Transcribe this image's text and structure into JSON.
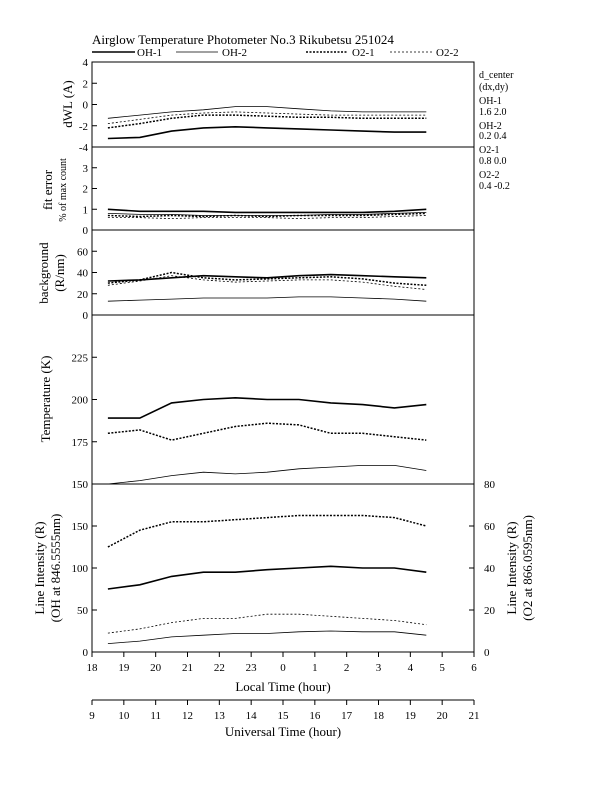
{
  "header": {
    "title": "Airglow Temperature Photometer No.3  Rikubetsu    251024",
    "legend": [
      {
        "name": "OH-1",
        "style": "solid-thick"
      },
      {
        "name": "OH-2",
        "style": "solid-thin"
      },
      {
        "name": "O2-1",
        "style": "dotted-thick"
      },
      {
        "name": "O2-2",
        "style": "dotted-thin"
      }
    ]
  },
  "annotations": {
    "d_center_title": "d_center",
    "d_center_sub": "(dx,dy)",
    "oh1_label": "OH-1",
    "oh1_value": "1.6  2.0",
    "oh2_label": "OH-2",
    "oh2_value": "0.2  0.4",
    "o21_label": "O2-1",
    "o21_value": "0.8  0.0",
    "o22_label": "O2-2",
    "o22_value": "0.4  -0.2"
  },
  "axes": {
    "local_time_label": "Local Time (hour)",
    "universal_time_label": "Universal Time (hour)",
    "local_ticks": [
      "18",
      "19",
      "20",
      "21",
      "22",
      "23",
      "0",
      "1",
      "2",
      "3",
      "4",
      "5",
      "6"
    ],
    "ut_ticks": [
      "9",
      "10",
      "11",
      "12",
      "13",
      "14",
      "15",
      "16",
      "17",
      "18",
      "19",
      "20",
      "21"
    ]
  },
  "colors": {
    "line": "#000000",
    "background": "#ffffff"
  },
  "chart_data": [
    {
      "type": "line",
      "panel": "dwl",
      "ylabel": "dWL (A)",
      "ylim": [
        -4,
        4
      ],
      "yticks": [
        "4",
        "2",
        "0",
        "-2",
        "-4"
      ],
      "series": [
        {
          "name": "OH-1",
          "x": [
            18.5,
            19.5,
            20.5,
            21.5,
            22.5,
            23.5,
            24.5,
            25.5,
            26.5,
            27.5,
            28.5
          ],
          "values": [
            -3.2,
            -3.1,
            -2.5,
            -2.2,
            -2.1,
            -2.2,
            -2.3,
            -2.4,
            -2.5,
            -2.6,
            -2.6
          ]
        },
        {
          "name": "OH-2",
          "x": [
            18.5,
            19.5,
            20.5,
            21.5,
            22.5,
            23.5,
            24.5,
            25.5,
            26.5,
            27.5,
            28.5
          ],
          "values": [
            -1.3,
            -1.0,
            -0.7,
            -0.5,
            -0.2,
            -0.2,
            -0.4,
            -0.6,
            -0.7,
            -0.7,
            -0.7
          ]
        },
        {
          "name": "O2-1",
          "x": [
            18.5,
            19.5,
            20.5,
            21.5,
            22.5,
            23.5,
            24.5,
            25.5,
            26.5,
            27.5,
            28.5
          ],
          "values": [
            -2.2,
            -1.8,
            -1.3,
            -1.0,
            -1.0,
            -1.1,
            -1.2,
            -1.2,
            -1.3,
            -1.3,
            -1.3
          ]
        },
        {
          "name": "O2-2",
          "x": [
            18.5,
            19.5,
            20.5,
            21.5,
            22.5,
            23.5,
            24.5,
            25.5,
            26.5,
            27.5,
            28.5
          ],
          "values": [
            -1.8,
            -1.4,
            -1.0,
            -0.8,
            -0.7,
            -0.8,
            -0.9,
            -1.0,
            -1.0,
            -1.0,
            -1.0
          ]
        }
      ]
    },
    {
      "type": "line",
      "panel": "fit-error",
      "ylabel": "fit error",
      "ylabel2": "% of max count",
      "ylim": [
        0,
        4
      ],
      "yticks": [
        "3",
        "2",
        "1",
        "0"
      ],
      "series": [
        {
          "name": "OH-1",
          "x": [
            18.5,
            19.5,
            20.5,
            21.5,
            22.5,
            23.5,
            24.5,
            25.5,
            26.5,
            27.5,
            28.5
          ],
          "values": [
            1.0,
            0.9,
            0.9,
            0.9,
            0.85,
            0.85,
            0.85,
            0.85,
            0.85,
            0.9,
            1.0
          ]
        },
        {
          "name": "OH-2",
          "x": [
            18.5,
            19.5,
            20.5,
            21.5,
            22.5,
            23.5,
            24.5,
            25.5,
            26.5,
            27.5,
            28.5
          ],
          "values": [
            0.8,
            0.75,
            0.75,
            0.7,
            0.7,
            0.7,
            0.7,
            0.75,
            0.75,
            0.8,
            0.85
          ]
        },
        {
          "name": "O2-1",
          "x": [
            18.5,
            19.5,
            20.5,
            21.5,
            22.5,
            23.5,
            24.5,
            25.5,
            26.5,
            27.5,
            28.5
          ],
          "values": [
            0.7,
            0.65,
            0.7,
            0.65,
            0.7,
            0.65,
            0.7,
            0.7,
            0.7,
            0.75,
            0.8
          ]
        },
        {
          "name": "O2-2",
          "x": [
            18.5,
            19.5,
            20.5,
            21.5,
            22.5,
            23.5,
            24.5,
            25.5,
            26.5,
            27.5,
            28.5
          ],
          "values": [
            0.6,
            0.6,
            0.55,
            0.6,
            0.6,
            0.6,
            0.55,
            0.6,
            0.6,
            0.65,
            0.7
          ]
        }
      ]
    },
    {
      "type": "line",
      "panel": "background",
      "ylabel": "background",
      "ylabel2": "(R/nm)",
      "ylim": [
        0,
        80
      ],
      "yticks": [
        "60",
        "40",
        "20",
        "0"
      ],
      "series": [
        {
          "name": "OH-1",
          "x": [
            18.5,
            19.5,
            20.5,
            21.5,
            22.5,
            23.5,
            24.5,
            25.5,
            26.5,
            27.5,
            28.5
          ],
          "values": [
            32,
            33,
            35,
            37,
            36,
            35,
            37,
            38,
            37,
            36,
            35
          ]
        },
        {
          "name": "OH-2",
          "x": [
            18.5,
            19.5,
            20.5,
            21.5,
            22.5,
            23.5,
            24.5,
            25.5,
            26.5,
            27.5,
            28.5
          ],
          "values": [
            13,
            14,
            15,
            16,
            16,
            16,
            17,
            17,
            16,
            15,
            13
          ]
        },
        {
          "name": "O2-1",
          "x": [
            18.5,
            19.5,
            20.5,
            21.5,
            22.5,
            23.5,
            24.5,
            25.5,
            26.5,
            27.5,
            28.5
          ],
          "values": [
            30,
            33,
            40,
            35,
            33,
            34,
            35,
            36,
            34,
            30,
            28
          ]
        },
        {
          "name": "O2-2",
          "x": [
            18.5,
            19.5,
            20.5,
            21.5,
            22.5,
            23.5,
            24.5,
            25.5,
            26.5,
            27.5,
            28.5
          ],
          "values": [
            28,
            32,
            37,
            33,
            31,
            32,
            33,
            33,
            31,
            27,
            24
          ]
        }
      ]
    },
    {
      "type": "line",
      "panel": "temperature",
      "ylabel": "Temperature (K)",
      "ylim": [
        150,
        250
      ],
      "yticks": [
        "225",
        "200",
        "175",
        "150"
      ],
      "series": [
        {
          "name": "OH-1",
          "x": [
            18.5,
            19.5,
            20.5,
            21.5,
            22.5,
            23.5,
            24.5,
            25.5,
            26.5,
            27.5,
            28.5
          ],
          "values": [
            189,
            189,
            198,
            200,
            201,
            200,
            200,
            198,
            197,
            195,
            197
          ]
        },
        {
          "name": "O2-1",
          "x": [
            18.5,
            19.5,
            20.5,
            21.5,
            22.5,
            23.5,
            24.5,
            25.5,
            26.5,
            27.5,
            28.5
          ],
          "values": [
            180,
            182,
            176,
            180,
            184,
            186,
            185,
            180,
            180,
            178,
            176
          ]
        },
        {
          "name": "OH-2",
          "x": [
            18.5,
            19.5,
            20.5,
            21.5,
            22.5,
            23.5,
            24.5,
            25.5,
            26.5,
            27.5,
            28.5
          ],
          "values": [
            150,
            152,
            155,
            157,
            156,
            157,
            159,
            160,
            161,
            161,
            158
          ]
        }
      ]
    },
    {
      "type": "line",
      "panel": "line-intensity",
      "ylabel": "Line Intensity (R)",
      "ylabel2": "(OH at 846.5555nm)",
      "ylabel_right": "Line Intensity (R)",
      "ylabel_right2": "(O2 at 866.0595nm)",
      "ylim": [
        0,
        200
      ],
      "ylim_right": [
        0,
        80
      ],
      "yticks": [
        "150",
        "100",
        "50",
        "0"
      ],
      "yticks_right": [
        "80",
        "60",
        "40",
        "20",
        "0"
      ],
      "series": [
        {
          "name": "OH-1",
          "axis": "left",
          "x": [
            18.5,
            19.5,
            20.5,
            21.5,
            22.5,
            23.5,
            24.5,
            25.5,
            26.5,
            27.5,
            28.5
          ],
          "values": [
            75,
            80,
            90,
            95,
            95,
            98,
            100,
            102,
            100,
            100,
            95
          ]
        },
        {
          "name": "OH-2",
          "axis": "left",
          "x": [
            18.5,
            19.5,
            20.5,
            21.5,
            22.5,
            23.5,
            24.5,
            25.5,
            26.5,
            27.5,
            28.5
          ],
          "values": [
            10,
            13,
            18,
            20,
            22,
            22,
            24,
            25,
            24,
            24,
            20
          ]
        },
        {
          "name": "O2-1",
          "axis": "right",
          "x": [
            18.5,
            19.5,
            20.5,
            21.5,
            22.5,
            23.5,
            24.5,
            25.5,
            26.5,
            27.5,
            28.5
          ],
          "values": [
            50,
            58,
            62,
            62,
            63,
            64,
            65,
            65,
            65,
            64,
            60
          ]
        },
        {
          "name": "O2-2",
          "axis": "right",
          "x": [
            18.5,
            19.5,
            20.5,
            21.5,
            22.5,
            23.5,
            24.5,
            25.5,
            26.5,
            27.5,
            28.5
          ],
          "values": [
            9,
            11,
            14,
            16,
            16,
            18,
            18,
            17,
            16,
            15,
            13
          ]
        }
      ]
    }
  ]
}
